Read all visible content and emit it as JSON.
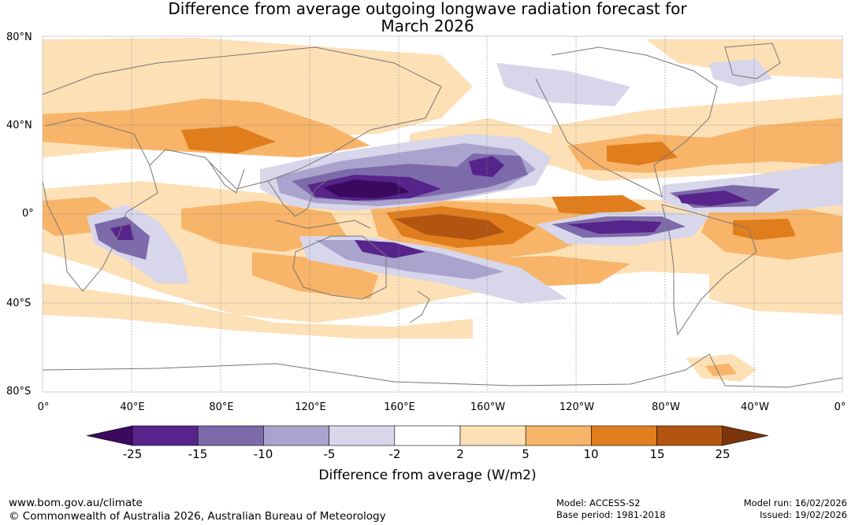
{
  "title_line1": "Difference from average outgoing longwave radiation forecast for",
  "title_line2": "March 2026",
  "lat_labels": [
    "80°N",
    "40°N",
    "0°",
    "40°S",
    "80°S"
  ],
  "lon_labels": [
    "0°",
    "40°E",
    "80°E",
    "120°E",
    "160°E",
    "160°W",
    "120°W",
    "80°W",
    "40°W",
    "0°"
  ],
  "colorbar": {
    "labels": [
      "-25",
      "-15",
      "-10",
      "-5",
      "-2",
      "2",
      "5",
      "10",
      "15",
      "25"
    ],
    "colors": [
      "#3b0a5e",
      "#56248a",
      "#7d6aaa",
      "#aaa3cd",
      "#d7d6ea",
      "#ffffff",
      "#fde0b6",
      "#f8b468",
      "#e07d1c",
      "#b25511",
      "#7a350a"
    ],
    "title": "Difference from average (W/m2)"
  },
  "footer": {
    "website": "www.bom.gov.au/climate",
    "copyright": "© Commonwealth of Australia 2026, Australian Bureau of Meteorology",
    "model": "Model: ACCESS-S2",
    "base_period": "Base period: 1981-2018",
    "model_run": "Model run: 16/02/2026",
    "issued": "Issued: 19/02/2026"
  }
}
